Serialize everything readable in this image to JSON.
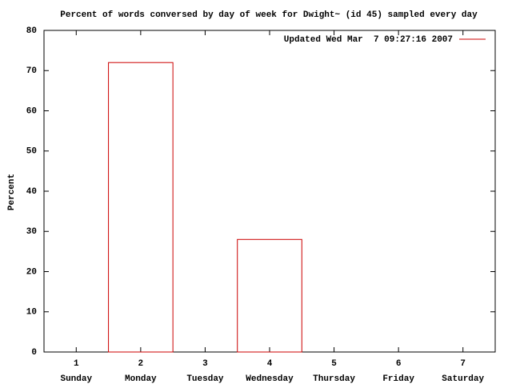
{
  "chart_data": {
    "type": "bar",
    "title": "Percent of words conversed by day of week for Dwight~ (id 45) sampled every day",
    "ylabel": "Percent",
    "x": [
      1,
      2,
      3,
      4,
      5,
      6,
      7
    ],
    "categories": [
      "Sunday",
      "Monday",
      "Tuesday",
      "Wednesday",
      "Thursday",
      "Friday",
      "Saturday"
    ],
    "series": [
      {
        "name": "Updated Wed Mar  7 09:27:16 2007",
        "color": "#cc0000",
        "values": [
          0,
          72,
          0,
          28,
          0,
          0,
          0
        ]
      }
    ],
    "bar_width": 1,
    "xlim": [
      0.5,
      7.5
    ],
    "xticks": [
      1,
      2,
      3,
      4,
      5,
      6,
      7
    ],
    "ylim": [
      0,
      80
    ],
    "yticks": [
      0,
      10,
      20,
      30,
      40,
      50,
      60,
      70,
      80
    ],
    "legend": "top-right",
    "grid": false
  }
}
